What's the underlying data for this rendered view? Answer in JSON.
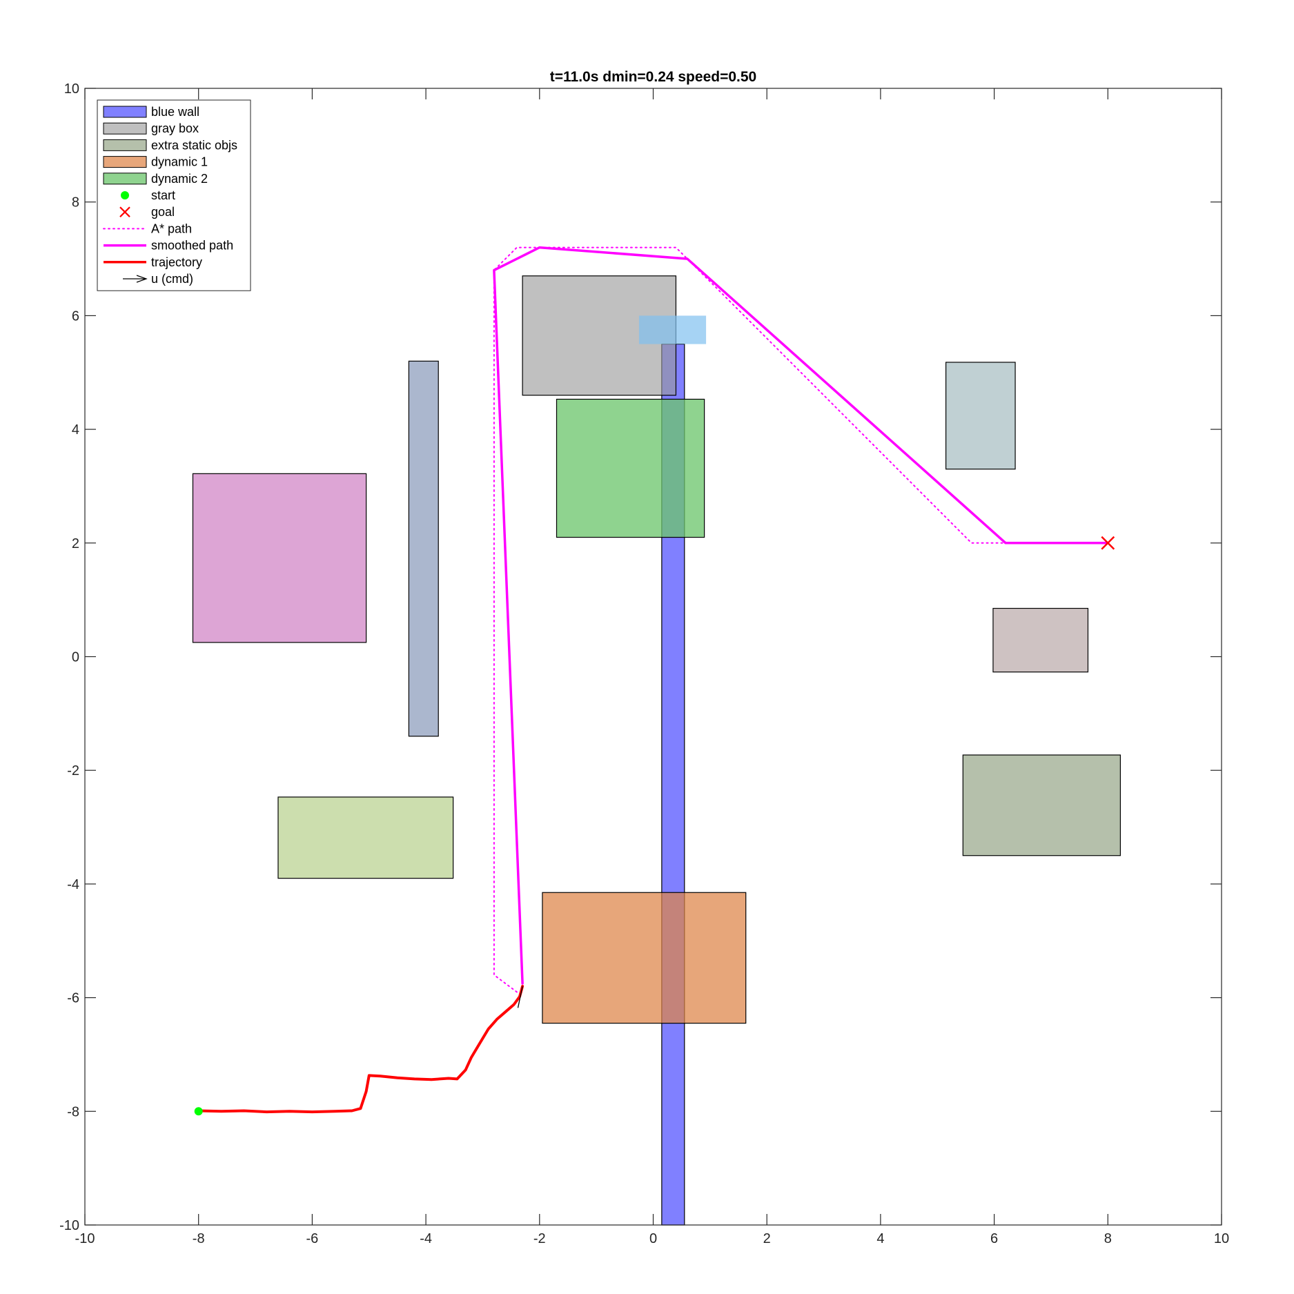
{
  "chart_data": {
    "type": "scatter",
    "title": "t=11.0s  dmin=0.24  speed=0.50",
    "xlabel": "",
    "ylabel": "",
    "xlim": [
      -10,
      10
    ],
    "ylim": [
      -10,
      10
    ],
    "xticks": [
      -10,
      -8,
      -6,
      -4,
      -2,
      0,
      2,
      4,
      6,
      8,
      10
    ],
    "yticks": [
      -10,
      -8,
      -6,
      -4,
      -2,
      0,
      2,
      4,
      6,
      8,
      10
    ],
    "grid": false,
    "legend_position": "top-left",
    "obstacles": [
      {
        "name": "blue wall",
        "x": 0.15,
        "y": -10,
        "w": 0.4,
        "h": 15.5,
        "color": "#8080ff",
        "opacity": 1,
        "stroke": true
      },
      {
        "name": "gray box",
        "x": -2.3,
        "y": 4.6,
        "w": 2.7,
        "h": 2.1,
        "color": "#999999",
        "opacity": 0.62,
        "stroke": true
      },
      {
        "name": "extra static obj",
        "x": -8.1,
        "y": 0.25,
        "w": 3.05,
        "h": 2.97,
        "color": "#cc77c0",
        "opacity": 0.66,
        "stroke": true
      },
      {
        "name": "extra static obj",
        "x": -4.3,
        "y": -1.4,
        "w": 0.52,
        "h": 6.6,
        "color": "#7f92b5",
        "opacity": 0.66,
        "stroke": true
      },
      {
        "name": "extra static obj",
        "x": -6.6,
        "y": -3.9,
        "w": 3.08,
        "h": 1.43,
        "color": "#b2cd84",
        "opacity": 0.66,
        "stroke": true
      },
      {
        "name": "extra static obj",
        "x": 5.15,
        "y": 3.3,
        "w": 1.22,
        "h": 1.88,
        "color": "#9fb8bc",
        "opacity": 0.66,
        "stroke": true
      },
      {
        "name": "extra static obj",
        "x": 5.98,
        "y": -0.27,
        "w": 1.67,
        "h": 1.12,
        "color": "#b5a3a2",
        "opacity": 0.66,
        "stroke": true
      },
      {
        "name": "extra static obj",
        "x": 5.45,
        "y": -3.5,
        "w": 2.77,
        "h": 1.77,
        "color": "#8f9f7f",
        "opacity": 0.66,
        "stroke": true
      },
      {
        "name": "dynamic 2",
        "x": -1.7,
        "y": 2.1,
        "w": 2.6,
        "h": 2.43,
        "color": "#6cc56c",
        "opacity": 0.76,
        "stroke": true
      },
      {
        "name": "dynamic 1",
        "x": -1.95,
        "y": -6.45,
        "w": 3.58,
        "h": 2.3,
        "color": "#de8347",
        "opacity": 0.72,
        "stroke": true
      },
      {
        "name": "dynamic obj preview",
        "x": -0.25,
        "y": 5.5,
        "w": 1.18,
        "h": 0.5,
        "color": "#80c0f0",
        "opacity": 0.7,
        "stroke": false
      }
    ],
    "start": {
      "x": -8,
      "y": -8
    },
    "goal": {
      "x": 8,
      "y": 2
    },
    "series": [
      {
        "name": "A* path",
        "style": "dotted",
        "color": "#ff00ff",
        "x": [
          -2.4,
          -2.8,
          -2.8,
          -2.4,
          0.4,
          0.6,
          5.6,
          6.2,
          8
        ],
        "y": [
          -5.9,
          -5.6,
          6.8,
          7.2,
          7.2,
          7.0,
          2.0,
          2.0,
          2.0
        ]
      },
      {
        "name": "smoothed path",
        "style": "solid",
        "color": "#ff00ff",
        "x": [
          -2.3,
          -2.8,
          -2.0,
          0.6,
          6.2,
          8.0
        ],
        "y": [
          -5.75,
          6.8,
          7.2,
          7.0,
          2.0,
          2.0
        ]
      },
      {
        "name": "trajectory",
        "style": "solid",
        "color": "#ff0000",
        "x": [
          -8.0,
          -7.6,
          -7.2,
          -6.8,
          -6.4,
          -6.0,
          -5.6,
          -5.3,
          -5.15,
          -5.05,
          -5.0,
          -4.8,
          -4.5,
          -4.2,
          -3.9,
          -3.6,
          -3.45,
          -3.3,
          -3.2,
          -3.05,
          -2.9,
          -2.75,
          -2.6,
          -2.45,
          -2.35,
          -2.3
        ],
        "y": [
          -7.99,
          -8.0,
          -7.99,
          -8.01,
          -8.0,
          -8.01,
          -8.0,
          -7.99,
          -7.95,
          -7.65,
          -7.37,
          -7.38,
          -7.41,
          -7.43,
          -7.44,
          -7.42,
          -7.43,
          -7.27,
          -7.05,
          -6.8,
          -6.55,
          -6.38,
          -6.25,
          -6.12,
          -5.98,
          -5.8
        ]
      },
      {
        "name": "u (cmd)",
        "style": "arrow",
        "color": "#000000",
        "x": [
          -2.3,
          -2.38
        ],
        "y": [
          -5.8,
          -6.18
        ]
      }
    ],
    "legend": [
      {
        "label": "blue wall",
        "kind": "patch",
        "color": "#8080ff",
        "opacity": 1
      },
      {
        "label": "gray box",
        "kind": "patch",
        "color": "#999999",
        "opacity": 0.62
      },
      {
        "label": "extra static objs",
        "kind": "patch",
        "color": "#8f9f7f",
        "opacity": 0.66
      },
      {
        "label": "dynamic 1",
        "kind": "patch",
        "color": "#de8347",
        "opacity": 0.72
      },
      {
        "label": "dynamic 2",
        "kind": "patch",
        "color": "#6cc56c",
        "opacity": 0.76
      },
      {
        "label": "start",
        "kind": "dot",
        "color": "#00ff00"
      },
      {
        "label": "goal",
        "kind": "cross",
        "color": "#ff0000"
      },
      {
        "label": "A* path",
        "kind": "dotted",
        "color": "#ff00ff"
      },
      {
        "label": "smoothed path",
        "kind": "line",
        "color": "#ff00ff"
      },
      {
        "label": "trajectory",
        "kind": "line",
        "color": "#ff0000"
      },
      {
        "label": "u (cmd)",
        "kind": "arrow",
        "color": "#000000"
      }
    ]
  }
}
